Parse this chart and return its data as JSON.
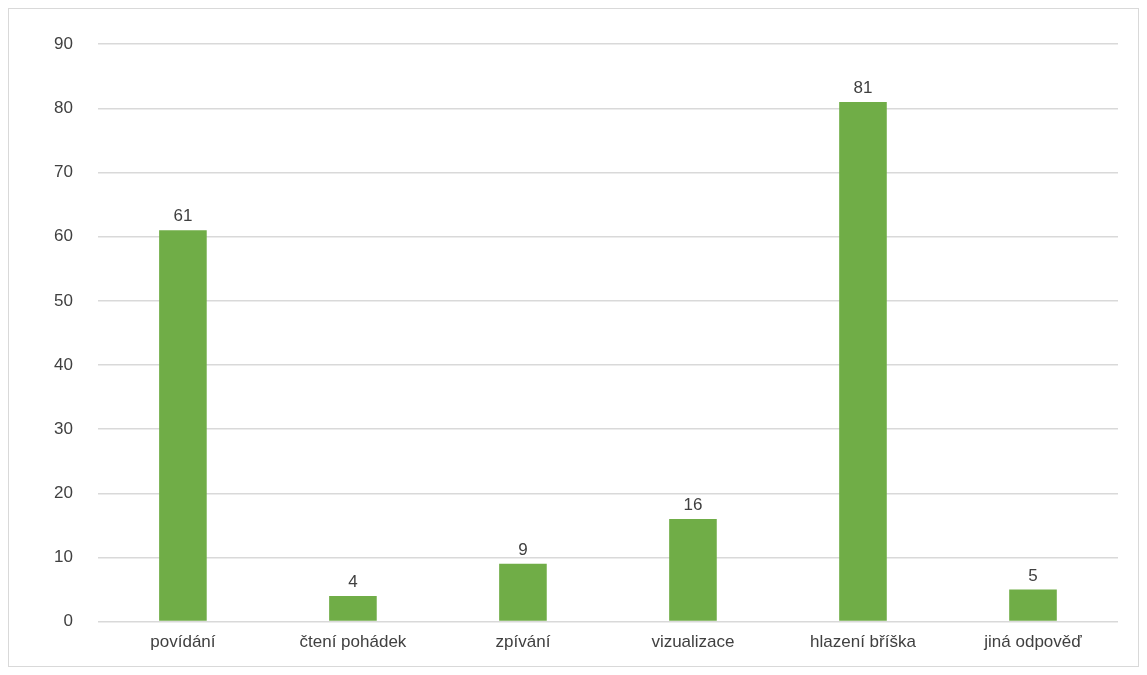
{
  "chart_data": {
    "type": "bar",
    "categories": [
      "povídání",
      "čtení pohádek",
      "zpívání",
      "vizualizace",
      "hlazení bříška",
      "jiná odpověď"
    ],
    "values": [
      61,
      4,
      9,
      16,
      81,
      5
    ],
    "color": "#70ad47",
    "ylim": [
      0,
      90
    ],
    "yticks": [
      0,
      10,
      20,
      30,
      40,
      50,
      60,
      70,
      80,
      90
    ],
    "grid": "y",
    "data_labels": true
  }
}
